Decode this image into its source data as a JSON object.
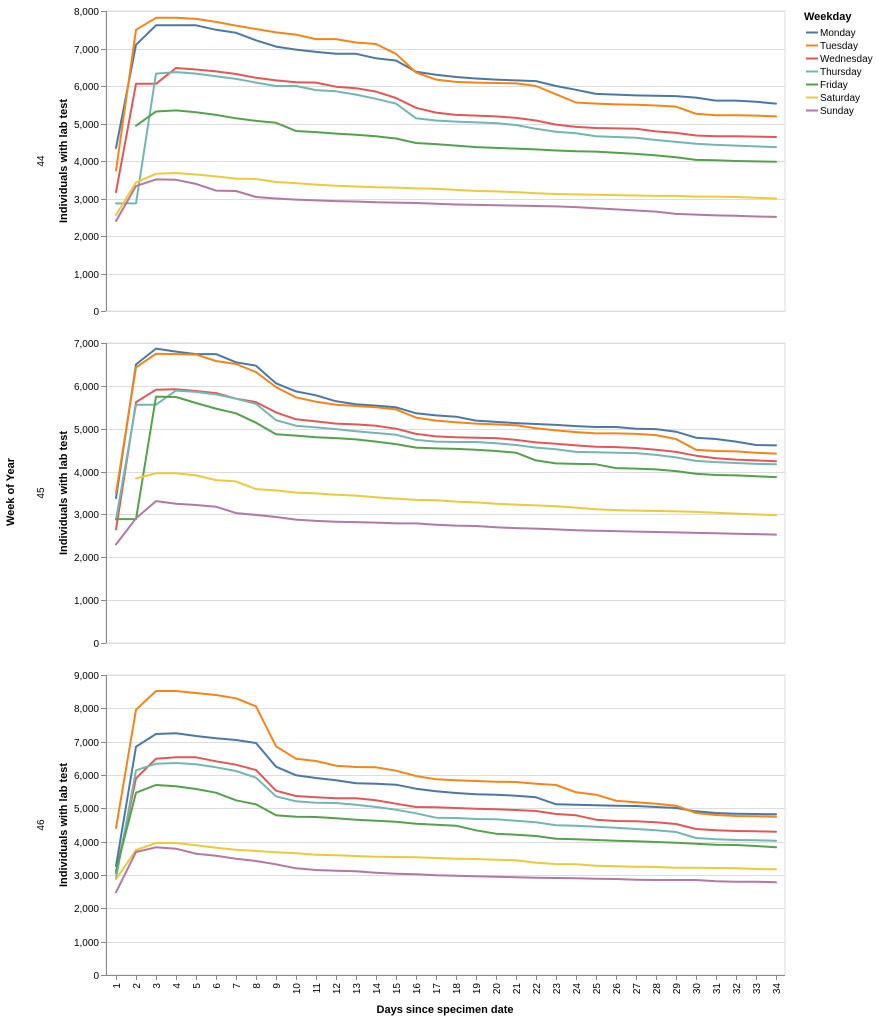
{
  "chart_data": {
    "type": "line",
    "facet_title": "Week of Year",
    "xlabel": "Days since specimen date",
    "ylabel": "Individuals with lab test",
    "x": [
      1,
      2,
      3,
      4,
      5,
      6,
      7,
      8,
      9,
      10,
      11,
      12,
      13,
      14,
      15,
      16,
      17,
      18,
      19,
      20,
      21,
      22,
      23,
      24,
      25,
      26,
      27,
      28,
      29,
      30,
      31,
      32,
      33,
      34
    ],
    "legend": {
      "title": "Weekday",
      "entries": [
        "Monday",
        "Tuesday",
        "Wednesday",
        "Thursday",
        "Friday",
        "Saturday",
        "Sunday"
      ],
      "colors": [
        "#4c78a8",
        "#f58518",
        "#e45756",
        "#72b7b2",
        "#54a24b",
        "#eeca3b",
        "#b279a2"
      ]
    },
    "panels": [
      {
        "week": "44",
        "ylim": [
          0,
          8000
        ],
        "yticks": [
          0,
          1000,
          2000,
          3000,
          4000,
          5000,
          6000,
          7000,
          8000
        ],
        "series": [
          {
            "name": "Monday",
            "values": [
              4350,
              7100,
              7620,
              7620,
              7620,
              7500,
              7420,
              7220,
              7050,
              6970,
              6910,
              6860,
              6860,
              6740,
              6680,
              6380,
              6300,
              6240,
              6200,
              6170,
              6150,
              6130,
              6000,
              5900,
              5790,
              5770,
              5750,
              5740,
              5730,
              5690,
              5610,
              5610,
              5580,
              5530
            ]
          },
          {
            "name": "Tuesday",
            "values": [
              3750,
              7500,
              7820,
              7820,
              7790,
              7710,
              7610,
              7520,
              7430,
              7370,
              7250,
              7250,
              7160,
              7120,
              6860,
              6360,
              6170,
              6110,
              6090,
              6080,
              6070,
              6000,
              5780,
              5560,
              5530,
              5510,
              5500,
              5480,
              5450,
              5260,
              5220,
              5220,
              5210,
              5190
            ]
          },
          {
            "name": "Wednesday",
            "values": [
              3170,
              6060,
              6060,
              6480,
              6440,
              6390,
              6320,
              6220,
              6150,
              6100,
              6090,
              5980,
              5940,
              5850,
              5680,
              5420,
              5290,
              5230,
              5210,
              5190,
              5150,
              5080,
              4970,
              4910,
              4880,
              4870,
              4860,
              4790,
              4750,
              4680,
              4660,
              4660,
              4650,
              4640
            ]
          },
          {
            "name": "Thursday",
            "values": [
              2870,
              2870,
              6330,
              6370,
              6330,
              6260,
              6190,
              6090,
              6000,
              6000,
              5890,
              5860,
              5770,
              5660,
              5530,
              5140,
              5080,
              5050,
              5030,
              5010,
              4960,
              4860,
              4780,
              4740,
              4660,
              4640,
              4620,
              4560,
              4510,
              4460,
              4430,
              4410,
              4390,
              4370
            ]
          },
          {
            "name": "Friday",
            "values": [
              null,
              4940,
              5320,
              5350,
              5300,
              5230,
              5140,
              5070,
              5020,
              4800,
              4770,
              4730,
              4700,
              4660,
              4600,
              4480,
              4450,
              4410,
              4370,
              4350,
              4330,
              4310,
              4280,
              4260,
              4250,
              4220,
              4190,
              4150,
              4100,
              4030,
              4020,
              4000,
              3990,
              3980
            ]
          },
          {
            "name": "Saturday",
            "values": [
              2560,
              3430,
              3660,
              3680,
              3640,
              3590,
              3530,
              3520,
              3440,
              3410,
              3370,
              3340,
              3320,
              3300,
              3290,
              3270,
              3260,
              3230,
              3200,
              3190,
              3170,
              3140,
              3120,
              3110,
              3100,
              3090,
              3080,
              3070,
              3070,
              3050,
              3050,
              3040,
              3020,
              3000
            ]
          },
          {
            "name": "Sunday",
            "values": [
              2400,
              3330,
              3510,
              3500,
              3390,
              3210,
              3200,
              3040,
              3000,
              2970,
              2950,
              2930,
              2920,
              2900,
              2890,
              2880,
              2860,
              2840,
              2830,
              2820,
              2810,
              2800,
              2790,
              2770,
              2740,
              2710,
              2680,
              2650,
              2590,
              2570,
              2550,
              2540,
              2520,
              2510
            ]
          }
        ]
      },
      {
        "week": "45",
        "ylim": [
          0,
          7000
        ],
        "yticks": [
          0,
          1000,
          2000,
          3000,
          4000,
          5000,
          6000,
          7000
        ],
        "series": [
          {
            "name": "Monday",
            "values": [
              3380,
              6500,
              6870,
              6800,
              6740,
              6740,
              6550,
              6470,
              6060,
              5870,
              5780,
              5640,
              5570,
              5540,
              5500,
              5360,
              5310,
              5280,
              5190,
              5160,
              5130,
              5110,
              5090,
              5060,
              5040,
              5040,
              5000,
              4990,
              4930,
              4790,
              4760,
              4700,
              4620,
              4610
            ]
          },
          {
            "name": "Tuesday",
            "values": [
              3500,
              6430,
              6750,
              6740,
              6730,
              6580,
              6510,
              6320,
              5970,
              5730,
              5630,
              5560,
              5530,
              5500,
              5450,
              5260,
              5190,
              5150,
              5120,
              5100,
              5080,
              5010,
              4960,
              4920,
              4890,
              4890,
              4880,
              4850,
              4760,
              4510,
              4480,
              4470,
              4440,
              4420
            ]
          },
          {
            "name": "Wednesday",
            "values": [
              2650,
              5620,
              5910,
              5920,
              5880,
              5830,
              5700,
              5620,
              5380,
              5220,
              5170,
              5120,
              5100,
              5070,
              5000,
              4880,
              4820,
              4800,
              4790,
              4780,
              4740,
              4680,
              4650,
              4610,
              4580,
              4570,
              4550,
              4510,
              4460,
              4370,
              4310,
              4280,
              4260,
              4240
            ]
          },
          {
            "name": "Thursday",
            "values": [
              2880,
              5560,
              5560,
              5890,
              5860,
              5800,
              5700,
              5580,
              5200,
              5070,
              5030,
              4990,
              4940,
              4900,
              4860,
              4740,
              4700,
              4690,
              4690,
              4660,
              4620,
              4560,
              4520,
              4460,
              4450,
              4440,
              4430,
              4390,
              4330,
              4250,
              4220,
              4200,
              4180,
              4170
            ]
          },
          {
            "name": "Friday",
            "values": [
              2890,
              2890,
              5750,
              5740,
              5600,
              5470,
              5360,
              5140,
              4870,
              4840,
              4800,
              4780,
              4750,
              4700,
              4640,
              4560,
              4540,
              4530,
              4510,
              4480,
              4440,
              4260,
              4190,
              4180,
              4170,
              4080,
              4070,
              4050,
              4010,
              3950,
              3920,
              3910,
              3890,
              3870
            ]
          },
          {
            "name": "Saturday",
            "values": [
              null,
              3840,
              3960,
              3960,
              3910,
              3800,
              3770,
              3590,
              3560,
              3510,
              3490,
              3460,
              3440,
              3400,
              3370,
              3340,
              3330,
              3300,
              3280,
              3250,
              3230,
              3210,
              3190,
              3160,
              3120,
              3100,
              3090,
              3080,
              3070,
              3060,
              3040,
              3020,
              3000,
              2980
            ]
          },
          {
            "name": "Sunday",
            "values": [
              2300,
              2910,
              3310,
              3250,
              3220,
              3180,
              3030,
              2990,
              2940,
              2880,
              2850,
              2830,
              2820,
              2810,
              2790,
              2790,
              2760,
              2740,
              2730,
              2700,
              2680,
              2670,
              2650,
              2630,
              2620,
              2610,
              2600,
              2590,
              2580,
              2570,
              2560,
              2550,
              2540,
              2530
            ]
          }
        ]
      },
      {
        "week": "46",
        "ylim": [
          0,
          9000
        ],
        "yticks": [
          0,
          1000,
          2000,
          3000,
          4000,
          5000,
          6000,
          7000,
          8000,
          9000
        ],
        "series": [
          {
            "name": "Monday",
            "values": [
              3270,
              6850,
              7230,
              7250,
              7170,
              7100,
              7050,
              6960,
              6250,
              5990,
              5910,
              5840,
              5750,
              5740,
              5710,
              5590,
              5510,
              5460,
              5420,
              5410,
              5380,
              5330,
              5120,
              5110,
              5090,
              5080,
              5070,
              5040,
              5010,
              4910,
              4860,
              4840,
              4830,
              4820
            ]
          },
          {
            "name": "Tuesday",
            "values": [
              4410,
              7960,
              8520,
              8520,
              8460,
              8400,
              8300,
              8060,
              6860,
              6490,
              6420,
              6280,
              6240,
              6230,
              6130,
              5970,
              5870,
              5840,
              5820,
              5800,
              5790,
              5740,
              5700,
              5480,
              5410,
              5230,
              5180,
              5140,
              5080,
              4860,
              4800,
              4770,
              4760,
              4750
            ]
          },
          {
            "name": "Wednesday",
            "values": [
              3050,
              5900,
              6490,
              6530,
              6530,
              6410,
              6310,
              6150,
              5530,
              5370,
              5330,
              5300,
              5300,
              5240,
              5140,
              5040,
              5030,
              5010,
              4990,
              4970,
              4950,
              4920,
              4830,
              4790,
              4660,
              4620,
              4610,
              4580,
              4530,
              4380,
              4340,
              4320,
              4310,
              4300
            ]
          },
          {
            "name": "Thursday",
            "values": [
              2900,
              6140,
              6340,
              6360,
              6320,
              6230,
              6120,
              5920,
              5360,
              5210,
              5170,
              5160,
              5110,
              5040,
              4960,
              4850,
              4720,
              4710,
              4680,
              4670,
              4630,
              4580,
              4490,
              4480,
              4450,
              4420,
              4380,
              4340,
              4290,
              4110,
              4070,
              4050,
              4040,
              4030
            ]
          },
          {
            "name": "Friday",
            "values": [
              3120,
              5470,
              5700,
              5660,
              5580,
              5470,
              5240,
              5120,
              4790,
              4750,
              4740,
              4700,
              4660,
              4630,
              4600,
              4540,
              4510,
              4480,
              4340,
              4240,
              4210,
              4170,
              4090,
              4070,
              4050,
              4030,
              4010,
              3990,
              3970,
              3940,
              3910,
              3900,
              3870,
              3830
            ]
          },
          {
            "name": "Saturday",
            "values": [
              2870,
              3750,
              3960,
              3960,
              3890,
              3820,
              3760,
              3720,
              3680,
              3650,
              3610,
              3590,
              3570,
              3550,
              3540,
              3530,
              3510,
              3490,
              3480,
              3460,
              3440,
              3370,
              3330,
              3320,
              3280,
              3260,
              3250,
              3240,
              3220,
              3220,
              3210,
              3200,
              3180,
              3170
            ]
          },
          {
            "name": "Sunday",
            "values": [
              2480,
              3690,
              3830,
              3790,
              3640,
              3580,
              3490,
              3420,
              3320,
              3200,
              3150,
              3130,
              3110,
              3070,
              3040,
              3020,
              2990,
              2980,
              2960,
              2950,
              2930,
              2920,
              2910,
              2900,
              2890,
              2880,
              2860,
              2850,
              2850,
              2850,
              2810,
              2800,
              2800,
              2780
            ]
          }
        ]
      }
    ]
  }
}
